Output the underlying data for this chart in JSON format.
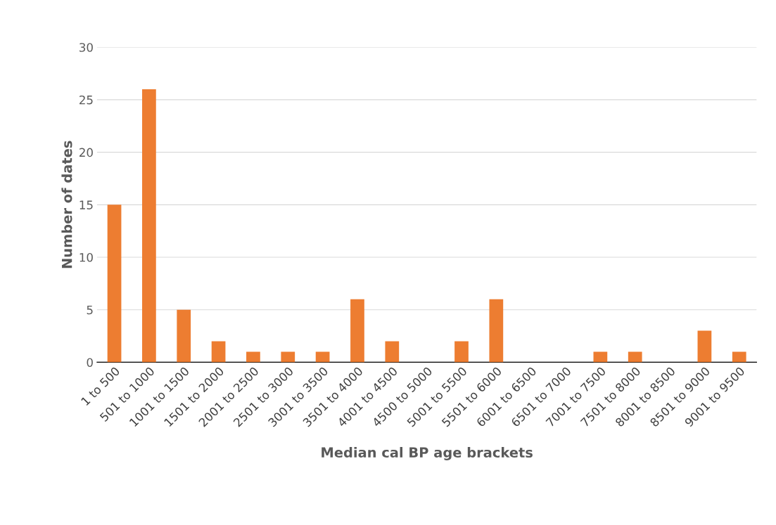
{
  "chart_data": {
    "type": "bar",
    "xlabel": "Median cal BP age brackets",
    "ylabel": "Number of dates",
    "categories": [
      "1 to 500",
      "501 to 1000",
      "1001 to 1500",
      "1501 to 2000",
      "2001 to 2500",
      "2501 to 3000",
      "3001 to 3500",
      "3501 to 4000",
      "4001 to 4500",
      "4500 to 5000",
      "5001 to 5500",
      "5501 to 6000",
      "6001 to 6500",
      "6501 to 7000",
      "7001 to 7500",
      "7501 to 8000",
      "8001 to 8500",
      "8501 to 9000",
      "9001 to 9500"
    ],
    "values": [
      15,
      26,
      5,
      2,
      1,
      1,
      1,
      6,
      2,
      0,
      2,
      6,
      0,
      0,
      1,
      1,
      0,
      3,
      1
    ],
    "color": "#ed7d31",
    "ylim": [
      0,
      30
    ],
    "yticks": [
      0,
      5,
      10,
      15,
      20,
      25,
      30
    ],
    "grid": "y"
  }
}
